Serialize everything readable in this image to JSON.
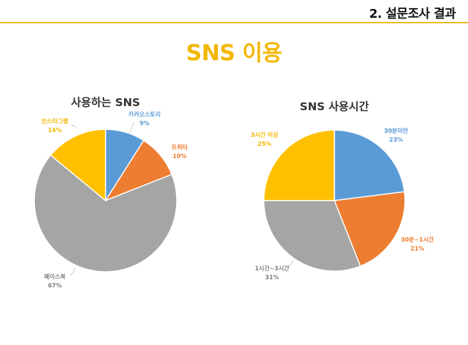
{
  "header": {
    "section_title": "2. 설문조사 결과"
  },
  "page_title": "SNS 이용",
  "colors": {
    "accent": "#f2b600",
    "blue": "#5b9bd5",
    "orange": "#ed7d31",
    "gray": "#a5a5a5",
    "yellow": "#ffc000"
  },
  "chart_data": [
    {
      "type": "pie",
      "title": "사용하는 SNS",
      "categories": [
        "카카오스토리",
        "트위터",
        "페이스북",
        "인스타그램"
      ],
      "values": [
        9,
        10,
        67,
        14
      ],
      "labels": [
        "9%",
        "10%",
        "67%",
        "14%"
      ],
      "colors": [
        "#5b9bd5",
        "#ed7d31",
        "#a5a5a5",
        "#ffc000"
      ]
    },
    {
      "type": "pie",
      "title": "SNS 사용시간",
      "categories": [
        "30분미만",
        "30분~1시간",
        "1시간~3시간",
        "3시간 이상"
      ],
      "values": [
        23,
        21,
        31,
        25
      ],
      "labels": [
        "23%",
        "21%",
        "31%",
        "25%"
      ],
      "colors": [
        "#5b9bd5",
        "#ed7d31",
        "#a5a5a5",
        "#ffc000"
      ]
    }
  ]
}
